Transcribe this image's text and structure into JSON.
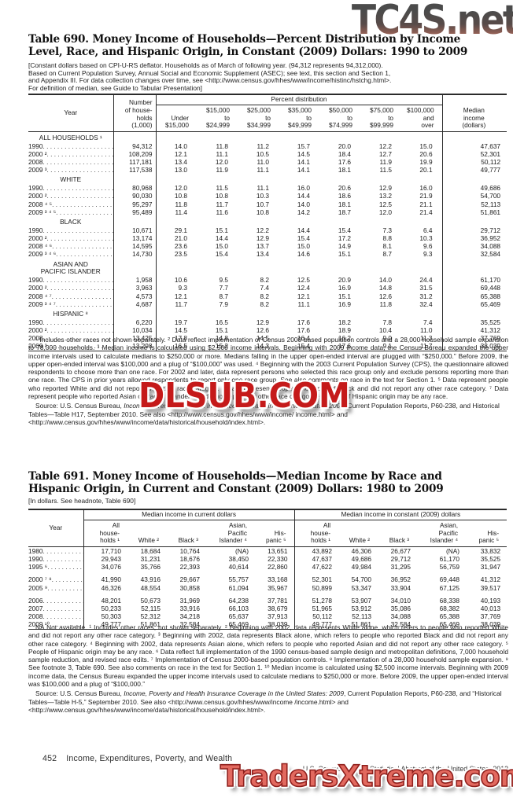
{
  "watermarks": {
    "top": {
      "text": "TC4S.net",
      "color_top": "#3c3c3c",
      "color_bottom": "#c08a77"
    },
    "middle": {
      "text": "DLSUB.COM",
      "color": "#c51a1a"
    },
    "bottom": {
      "text": "TradersXtreme.com",
      "color": "#e2695f"
    }
  },
  "table690": {
    "title1": "Table 690. Money Income of Households—Percent Distribution by Income",
    "title2": "Level, Race, and  Hispanic Origin, in Constant (2009) Dollars: 1990 to 2009",
    "headnote": "[Constant dollars based on CPI-U-RS deflator. Households as of March of following year. (94,312 represents 94,312,000).\nBased on Current Population Survey, Annual Social and Economic Supplement (ASEC); see text, this section and Section 1,\nand Appendix III. For data collection changes over time, see <http://www.census.gov/hhes/www/income/histinc/hstchg.html>.\nFor definition of median, see Guide to Tabular Presentation]",
    "header": {
      "year": "Year",
      "households": "Number\nof house-\nholds\n(1,000)",
      "group": "Percent distribution",
      "cols": [
        "Under\n$15,000",
        "$15,000\nto\n$24,999",
        "$25,000\nto\n$34,999",
        "$35,000\nto\n$49,999",
        "$50,000\nto\n$74,999",
        "$75,000\nto\n$99,999",
        "$100,000\nand\nover"
      ],
      "median": "Median\nincome\n(dollars)"
    },
    "sections": [
      {
        "label": "ALL HOUSEHOLDS ¹",
        "rows": [
          {
            "year": "1990",
            "cells": [
              "94,312",
              "14.0",
              "11.8",
              "11.2",
              "15.7",
              "20.0",
              "12.2",
              "15.0",
              "47,637"
            ]
          },
          {
            "year": "2000 ²",
            "cells": [
              "108,209",
              "12.1",
              "11.1",
              "10.5",
              "14.5",
              "18.4",
              "12.7",
              "20.6",
              "52,301"
            ]
          },
          {
            "year": "2008",
            "cells": [
              "117,181",
              "13.4",
              "12.0",
              "11.0",
              "14.1",
              "17.6",
              "11.9",
              "19.9",
              "50,112"
            ]
          },
          {
            "year": "2009 ³",
            "cells": [
              "117,538",
              "13.0",
              "11.9",
              "11.1",
              "14.1",
              "18.1",
              "11.5",
              "20.1",
              "49,777"
            ]
          }
        ]
      },
      {
        "label": "WHITE",
        "rows": [
          {
            "year": "1990",
            "cells": [
              "80,968",
              "12.0",
              "11.5",
              "11.1",
              "16.0",
              "20.6",
              "12.9",
              "16.0",
              "49,686"
            ]
          },
          {
            "year": "2000 ²",
            "cells": [
              "90,030",
              "10.8",
              "10.8",
              "10.3",
              "14.4",
              "18.6",
              "13.2",
              "21.9",
              "54,700"
            ]
          },
          {
            "year": "2008 ⁴ ⁵",
            "cells": [
              "95,297",
              "11.8",
              "11.7",
              "10.7",
              "14.0",
              "18.1",
              "12.5",
              "21.1",
              "52,113"
            ]
          },
          {
            "year": "2009 ³ ⁴ ⁵",
            "cells": [
              "95,489",
              "11.4",
              "11.6",
              "10.8",
              "14.2",
              "18.7",
              "12.0",
              "21.4",
              "51,861"
            ]
          }
        ]
      },
      {
        "label": "BLACK",
        "rows": [
          {
            "year": "1990",
            "cells": [
              "10,671",
              "29.1",
              "15.1",
              "12.2",
              "14.4",
              "15.4",
              "7.3",
              "6.4",
              "29,712"
            ]
          },
          {
            "year": "2000 ²",
            "cells": [
              "13,174",
              "21.0",
              "14.4",
              "12.9",
              "15.4",
              "17.2",
              "8.8",
              "10.3",
              "36,952"
            ]
          },
          {
            "year": "2008 ⁴ ⁶",
            "cells": [
              "14,595",
              "23.6",
              "15.0",
              "13.7",
              "15.0",
              "14.9",
              "8.1",
              "9.6",
              "34,088"
            ]
          },
          {
            "year": "2009 ³ ⁴ ⁶",
            "cells": [
              "14,730",
              "23.5",
              "15.4",
              "13.4",
              "14.6",
              "15.1",
              "8.7",
              "9.3",
              "32,584"
            ]
          }
        ]
      },
      {
        "label": "ASIAN AND\nPACIFIC ISLANDER",
        "rows": [
          {
            "year": "1990",
            "cells": [
              "1,958",
              "10.6",
              "9.5",
              "8.2",
              "12.5",
              "20.9",
              "14.0",
              "24.4",
              "61,170"
            ]
          },
          {
            "year": "2000 ²",
            "cells": [
              "3,963",
              "9.3",
              "7.7",
              "7.4",
              "12.4",
              "16.9",
              "14.8",
              "31.5",
              "69,448"
            ]
          },
          {
            "year": "2008 ⁴ ⁷",
            "cells": [
              "4,573",
              "12.1",
              "8.7",
              "8.2",
              "12.1",
              "15.1",
              "12.6",
              "31.2",
              "65,388"
            ]
          },
          {
            "year": "2009 ³ ⁴ ⁷",
            "cells": [
              "4,687",
              "11.7",
              "7.9",
              "8.2",
              "11.1",
              "16.9",
              "11.8",
              "32.4",
              "65,469"
            ]
          }
        ]
      },
      {
        "label": "HISPANIC ⁸",
        "rows": [
          {
            "year": "1990",
            "cells": [
              "6,220",
              "19.7",
              "16.5",
              "12.9",
              "17.6",
              "18.2",
              "7.8",
              "7.4",
              "35,525"
            ]
          },
          {
            "year": "2000 ²",
            "cells": [
              "10,034",
              "14.5",
              "15.1",
              "12.6",
              "17.6",
              "18.9",
              "10.4",
              "11.0",
              "41,312"
            ]
          },
          {
            "year": "2008",
            "cells": [
              "13,425",
              "17.8",
              "14.8",
              "14.5",
              "16.4",
              "16.2",
              "9.0",
              "11.3",
              "37,769"
            ]
          },
          {
            "year": "2009 ³",
            "cells": [
              "13,298",
              "16.5",
              "15.2",
              "14.3",
              "15.4",
              "17.6",
              "9.1",
              "11.7",
              "38,039"
            ]
          }
        ]
      }
    ],
    "footnotes": "¹ Includes other races not shown separately. ² Data reflect implementation of Census 2000-based population controls and a 28,000 household sample expansion to 78,000 households. ³ Median income is calculated using $2,500 income intervals. Beginning with 2009 income data, the Census Bureau expanded the upper income intervals used to calculate medians to $250,000 or more. Medians falling in the upper open-ended interval are plugged with “$250,000.” Before 2009, the upper open-ended interval was $100,000 and a plug of “$100,000” was used. ⁴ Beginning with the 2003 Current Population Survey (CPS), the questionnaire allowed respondents to choose more than one race. For 2002 and later, data represent persons who selected this race group only and exclude persons reporting more than one race. The CPS in prior years allowed respondents to report only one race group. See also comments on race in the text for Section 1. ⁵ Data represent people who reported White and did not report any other race category. ⁶ Data represent people who reported Black and did not report any other race category. ⁷ Data represent people who reported Asian or Pacific Islander and did not report any other race category. ⁸ People of Hispanic origin may be any race.",
    "source_prefix": "Source: U.S. Census Bureau, ",
    "source_italic": "Income, Poverty and Health Insurance Coverage in the United States: 2009",
    "source_rest": ", Current Population Reports, P60-238, and Historical Tables—Table H17, September 2010. See also <http://www.census.gov/hhes/www/income/ income.html> and <http://www.census.gov/hhes/www/income/data/historical/household/index.html>."
  },
  "table691": {
    "title1": "Table 691. Money Income of Households—Median Income by Race and",
    "title2": "Hispanic Origin, in Current and Constant (2009) Dollars: 1980 to 2009",
    "headnote": "[In dollars. See headnote, Table 690]",
    "header": {
      "year": "Year",
      "group_current": "Median income in current dollars",
      "group_constant": "Median income in constant (2009) dollars",
      "cols": [
        "All\nhouse-\nholds ¹",
        "White ²",
        "Black ³",
        "Asian,\nPacific\nIslander ⁴",
        "His-\npanic ⁵"
      ]
    },
    "groups": [
      {
        "rows": [
          {
            "year": "1980",
            "cells": [
              "17,710",
              "18,684",
              "10,764",
              "(NA)",
              "13,651",
              "43,892",
              "46,306",
              "26,677",
              "(NA)",
              "33,832"
            ]
          },
          {
            "year": "1990",
            "cells": [
              "29,943",
              "31,231",
              "18,676",
              "38,450",
              "22,330",
              "47,637",
              "49,686",
              "29,712",
              "61,170",
              "35,525"
            ]
          },
          {
            "year": "1995 ⁶",
            "cells": [
              "34,076",
              "35,766",
              "22,393",
              "40,614",
              "22,860",
              "47,622",
              "49,984",
              "31,295",
              "56,759",
              "31,947"
            ]
          }
        ]
      },
      {
        "rows": [
          {
            "year": "2000 ⁷ ⁸",
            "cells": [
              "41,990",
              "43,916",
              "29,667",
              "55,757",
              "33,168",
              "52,301",
              "54,700",
              "36,952",
              "69,448",
              "41,312"
            ]
          },
          {
            "year": "2005 ⁹",
            "cells": [
              "46,326",
              "48,554",
              "30,858",
              "61,094",
              "35,967",
              "50,899",
              "53,347",
              "33,904",
              "67,125",
              "39,517"
            ]
          }
        ]
      },
      {
        "rows": [
          {
            "year": "2006",
            "cells": [
              "48,201",
              "50,673",
              "31,969",
              "64,238",
              "37,781",
              "51,278",
              "53,907",
              "34,010",
              "68,338",
              "40,193"
            ]
          },
          {
            "year": "2007",
            "cells": [
              "50,233",
              "52,115",
              "33,916",
              "66,103",
              "38,679",
              "51,965",
              "53,912",
              "35,086",
              "68,382",
              "40,013"
            ]
          },
          {
            "year": "2008",
            "cells": [
              "50,303",
              "52,312",
              "34,218",
              "65,637",
              "37,913",
              "50,112",
              "52,113",
              "34,088",
              "65,388",
              "37,769"
            ]
          },
          {
            "year": "2009 ¹⁰",
            "cells": [
              "49,777",
              "51,861",
              "32,584",
              "65,469",
              "38,039",
              "49,777",
              "51,861",
              "32,584",
              "65,469",
              "38,039"
            ]
          }
        ]
      }
    ],
    "footnotes": "NA Not available. ¹ Includes other races, not shown separately. ² Beginning with 2002, data represents White alone, which refers to people who reported White and did not report any other race category. ³ Beginning with 2002, data represents Black alone, which refers to people who reported Black and did not report any other race category. ⁴ Beginning with 2002, data represents Asian alone, which refers to people who reported Asian and did not report any other race category. ⁵ People of Hispanic origin may be any race. ⁶ Data reflect full implementation of the 1990 census-based sample design and metropolitan definitions, 7,000 household sample reduction, and revised race edits. ⁷ Implementation of Census 2000-based population controls. ⁸ Implementation of a 28,000 household sample expansion. ⁹ See footnote 3, Table 690. See also comments on race in the text for Section 1. ¹⁰ Median income is calculated using $2,500 income intervals. Beginning with 2009 income data, the Census Bureau expanded the upper income intervals used to calculate medians to $250,000 or more. Before 2009, the upper open-ended interval was $100,000 and a plug of “$100,000.”",
    "source_prefix": "Source: U.S. Census Bureau, ",
    "source_italic": "Income, Poverty and Health Insurance Coverage in the United States: 2009",
    "source_rest": ", Current Population Reports, P60-238, and “Historical Tables—Table H-5,” September 2010. See also <http://www.census.gov/hhes/www/income /income.html> and <http://www.census.gov/hhes/www/income/data/historical/household/index.html>."
  },
  "footer": {
    "page_number": "452",
    "section_title": "Income, Expenditures, Poverty, and Wealth",
    "right_text": "U.S. Census Bureau, Statistical Abstract of the United States: 2012"
  }
}
